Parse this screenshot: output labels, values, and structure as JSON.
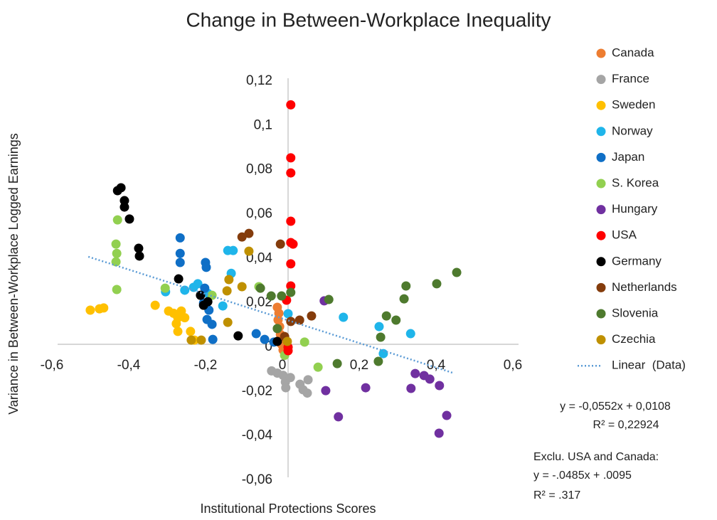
{
  "chart_data": {
    "type": "scatter",
    "title": "Change in Between-Workplace Inequality",
    "xlabel": "Institutional Protections Scores",
    "ylabel": "Variance in Between-Workplace Logged Earnings",
    "xlim": [
      -0.6,
      0.6
    ],
    "ylim": [
      -0.06,
      0.12
    ],
    "xticks": [
      {
        "value": -0.6,
        "label": "-0,6"
      },
      {
        "value": -0.4,
        "label": "-0,4"
      },
      {
        "value": -0.2,
        "label": "-0,2"
      },
      0,
      {
        "value": 0.2,
        "label": "0,2"
      },
      {
        "value": 0.4,
        "label": "0,4"
      },
      {
        "value": 0.6,
        "label": "0,6"
      }
    ],
    "yticks": [
      {
        "value": -0.06,
        "label": "-0,06"
      },
      {
        "value": -0.04,
        "label": "-0,04"
      },
      {
        "value": -0.02,
        "label": "-0,02"
      },
      0,
      {
        "value": 0.02,
        "label": "0,02"
      },
      {
        "value": 0.04,
        "label": "0,04"
      },
      {
        "value": 0.06,
        "label": "0,06"
      },
      {
        "value": 0.08,
        "label": "0,08"
      },
      {
        "value": 0.1,
        "label": "0,1"
      },
      {
        "value": 0.12,
        "label": "0,12"
      }
    ],
    "grid": false,
    "legend": "right",
    "series": [
      {
        "name": "Canada",
        "color": "#ED7D31",
        "x": [
          -0.028,
          -0.024,
          -0.026,
          -0.022,
          -0.02,
          -0.017,
          -0.013
        ],
        "y": [
          0.0167,
          0.014,
          0.011,
          0.008,
          0.0045,
          0.0,
          -0.0026
        ]
      },
      {
        "name": "France",
        "color": "#A5A5A5",
        "x": [
          -0.043,
          -0.028,
          -0.013,
          -0.007,
          0.006,
          0.031,
          0.05,
          0.052,
          -0.006,
          0.039
        ],
        "y": [
          -0.012,
          -0.013,
          -0.014,
          -0.017,
          -0.015,
          -0.018,
          -0.022,
          -0.016,
          -0.0196,
          -0.0205
        ]
      },
      {
        "name": "Sweden",
        "color": "#FFC000",
        "x": [
          -0.515,
          -0.491,
          -0.48,
          -0.346,
          -0.311,
          -0.298,
          -0.287,
          -0.278,
          -0.269,
          -0.291,
          -0.287,
          -0.254,
          -0.244
        ],
        "y": [
          0.0154,
          0.016,
          0.0164,
          0.0176,
          0.015,
          0.014,
          0.012,
          0.015,
          0.012,
          0.0093,
          0.0058,
          0.0058,
          0.0019
        ]
      },
      {
        "name": "Norway",
        "color": "#1FB5EA",
        "x": [
          -0.319,
          -0.269,
          -0.246,
          -0.235,
          -0.209,
          -0.17,
          -0.157,
          -0.143,
          -0.148,
          0.0,
          0.144,
          0.237,
          0.248,
          0.319
        ],
        "y": [
          0.0237,
          0.0244,
          0.0257,
          0.0273,
          0.023,
          0.0173,
          0.0423,
          0.0423,
          0.032,
          0.0138,
          0.0122,
          0.008,
          -0.0042,
          0.0048
        ]
      },
      {
        "name": "Japan",
        "color": "#0F6FC6",
        "x": [
          -0.281,
          -0.281,
          -0.281,
          -0.215,
          -0.213,
          -0.217,
          -0.22,
          -0.206,
          -0.211,
          -0.198,
          -0.196,
          -0.083,
          -0.061,
          -0.037
        ],
        "y": [
          0.048,
          0.041,
          0.0369,
          0.0369,
          0.0347,
          0.0253,
          0.0186,
          0.0154,
          0.0112,
          0.009,
          0.0022,
          0.0048,
          0.0022,
          0.001
        ]
      },
      {
        "name": "S. Korea",
        "color": "#92D050",
        "x": [
          -0.444,
          -0.448,
          -0.446,
          -0.448,
          -0.446,
          -0.32,
          -0.198,
          -0.076,
          0.043,
          0.078,
          -0.009
        ],
        "y": [
          0.0561,
          0.0452,
          0.041,
          0.0372,
          0.0247,
          0.0253,
          0.0221,
          0.026,
          0.001,
          -0.0103,
          -0.005
        ]
      },
      {
        "name": "Hungary",
        "color": "#7030A0",
        "x": [
          0.094,
          0.098,
          0.131,
          0.202,
          0.32,
          0.331,
          0.354,
          0.369,
          0.394,
          0.413,
          0.393
        ],
        "y": [
          0.0196,
          -0.0209,
          -0.0327,
          -0.0196,
          -0.0199,
          -0.0132,
          -0.0141,
          -0.0157,
          -0.0186,
          -0.0321,
          -0.0401
        ]
      },
      {
        "name": "USA",
        "color": "#FF0000",
        "x": [
          0.007,
          0.007,
          0.007,
          0.007,
          0.007,
          0.013,
          0.007,
          0.007,
          -0.004,
          0.0,
          0.0
        ],
        "y": [
          0.108,
          0.0841,
          0.0773,
          0.0555,
          0.0459,
          0.0452,
          0.0363,
          0.0263,
          0.0199,
          -0.0029,
          -0.0013
        ]
      },
      {
        "name": "Germany",
        "color": "#000000",
        "x": [
          -0.444,
          -0.435,
          -0.426,
          -0.426,
          -0.413,
          -0.389,
          -0.387,
          -0.285,
          -0.228,
          -0.22,
          -0.209,
          -0.13,
          -0.028
        ],
        "y": [
          0.0693,
          0.0706,
          0.0648,
          0.0619,
          0.0565,
          0.0433,
          0.0398,
          0.0295,
          0.0221,
          0.0176,
          0.0192,
          0.0038,
          0.0013
        ]
      },
      {
        "name": "Netherlands",
        "color": "#843C0C",
        "x": [
          -0.12,
          -0.102,
          -0.02,
          0.03,
          0.061,
          -0.009,
          0.007
        ],
        "y": [
          0.0484,
          0.05,
          0.0452,
          0.0109,
          0.0128,
          0.0035,
          0.0103
        ]
      },
      {
        "name": "Slovenia",
        "color": "#4E7A2E",
        "x": [
          0.439,
          0.387,
          0.307,
          0.302,
          0.256,
          0.281,
          0.241,
          0.235,
          0.128,
          0.106,
          0.007,
          -0.017,
          -0.044,
          -0.072,
          -0.028
        ],
        "y": [
          0.0324,
          0.0273,
          0.0263,
          0.0205,
          0.0128,
          0.0109,
          0.0032,
          -0.0077,
          -0.0087,
          0.0202,
          0.0234,
          0.0218,
          0.0218,
          0.0253,
          0.0071
        ]
      },
      {
        "name": "Czechia",
        "color": "#BF9000",
        "x": [
          -0.102,
          -0.154,
          -0.159,
          -0.12,
          -0.157,
          -0.252,
          -0.226,
          -0.002
        ],
        "y": [
          0.042,
          0.0292,
          0.0241,
          0.026,
          0.0099,
          0.0019,
          0.0019,
          0.0013
        ]
      }
    ],
    "trendline": {
      "name": "Linear  (Data)",
      "color": "#5B9BD5",
      "slope": -0.0552,
      "intercept": 0.0108,
      "xrange": [
        -0.52,
        0.43
      ]
    },
    "annotations": [
      "y = -0,0552x + 0,0108",
      "R² = 0,22924",
      "Exclu. USA and Canada:",
      "y = -.0485x + .0095",
      "R² = .317"
    ]
  }
}
